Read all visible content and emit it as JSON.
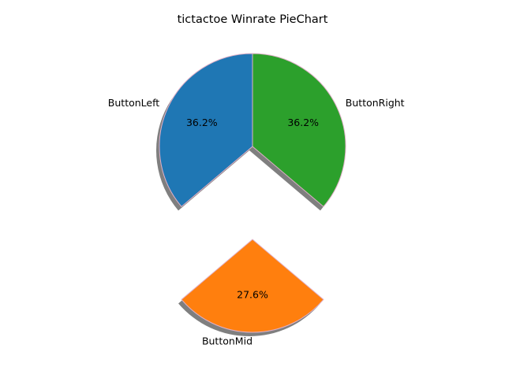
{
  "chart_data": {
    "type": "pie",
    "title": "tictactoe Winrate PieChart",
    "labels": [
      "ButtonLeft",
      "ButtonMid",
      "ButtonRight"
    ],
    "values": [
      36.2,
      27.6,
      36.2
    ],
    "percent_labels": [
      "36.2%",
      "27.6%",
      "36.2%"
    ],
    "colors": [
      "#1f77b4",
      "#ff7f0e",
      "#2ca02c"
    ],
    "edge_color": "#e0b0c8",
    "exploded": [
      "ButtonMid"
    ],
    "shadow": true,
    "start_angle_deg": 90,
    "direction": "counterclockwise"
  }
}
